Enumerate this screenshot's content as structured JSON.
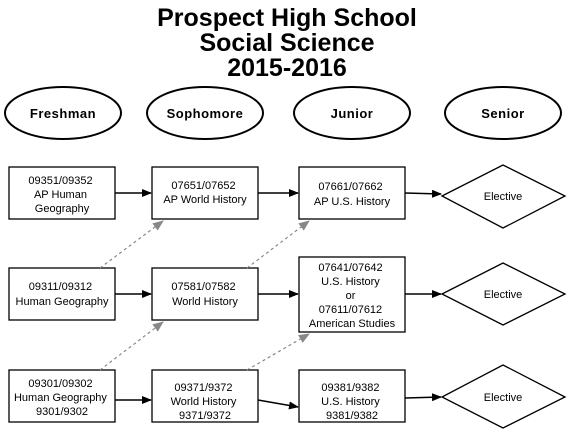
{
  "title": {
    "line1": "Prospect High School",
    "line2": "Social Science",
    "line3": "2015-2016"
  },
  "years": [
    "Freshman",
    "Sophomore",
    "Junior",
    "Senior"
  ],
  "courses": {
    "fr1": [
      "09351/09352",
      "AP Human",
      "Geography"
    ],
    "fr2": [
      "09311/09312",
      "Human Geography"
    ],
    "fr3": [
      "09301/09302",
      "Human Geography",
      "9301/9302"
    ],
    "so1": [
      "07651/07652",
      "AP World History"
    ],
    "so2": [
      "07581/07582",
      "World History"
    ],
    "so3": [
      "09371/9372",
      "World History",
      "9371/9372"
    ],
    "ju1": [
      "07661/07662",
      "AP U.S. History"
    ],
    "ju2": [
      "07641/07642",
      "U.S. History",
      "or",
      "07611/07612",
      "American Studies"
    ],
    "ju3": [
      "09381/9382",
      "U.S. History",
      "9381/9382"
    ],
    "se1": [
      "Elective"
    ],
    "se2": [
      "Elective"
    ],
    "se3": [
      "Elective"
    ]
  },
  "colors": {
    "solid_arrow": "#000000",
    "dashed_arrow": "#888888"
  }
}
